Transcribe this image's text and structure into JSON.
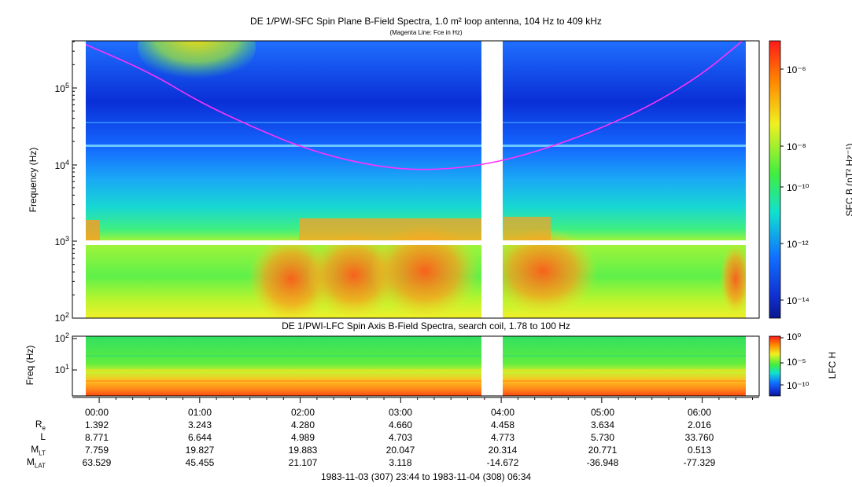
{
  "top_panel": {
    "title": "DE 1/PWI-SFC  Spin Plane B-Field Spectra, 1.0 m² loop antenna, 104 Hz to 409 kHz",
    "subtitle": "(Magenta Line: Fce in Hz)",
    "ylabel": "Frequency (Hz)",
    "colorbar_label": "SFC B (nT² Hz⁻¹)",
    "colorbar_ticks": [
      "10⁻⁶",
      "10⁻⁸",
      "10⁻¹⁰",
      "10⁻¹²",
      "10⁻¹⁴"
    ],
    "yticks": [
      {
        "base": "10",
        "exp": "5"
      },
      {
        "base": "10",
        "exp": "4"
      },
      {
        "base": "10",
        "exp": "3"
      },
      {
        "base": "10",
        "exp": "2"
      }
    ]
  },
  "bottom_panel": {
    "title": "DE 1/PWI-LFC  Spin Axis B-Field Spectra, search coil, 1.78 to 100 Hz",
    "ylabel": "Freq (Hz)",
    "colorbar_label": "LFC H",
    "colorbar_ticks": [
      "10⁰",
      "10⁻⁵",
      "10⁻¹⁰"
    ],
    "yticks": [
      {
        "base": "10",
        "exp": "2"
      },
      {
        "base": "10",
        "exp": "1"
      }
    ]
  },
  "ephemeris": {
    "labels": [
      {
        "main": "R",
        "sub": "e"
      },
      {
        "main": "L",
        "sub": ""
      },
      {
        "main": "M",
        "sub": "LT"
      },
      {
        "main": "M",
        "sub": "LAT"
      }
    ],
    "time_ticks": [
      "00:00",
      "01:00",
      "02:00",
      "03:00",
      "04:00",
      "05:00",
      "06:00"
    ],
    "re": [
      "1.392",
      "3.243",
      "4.280",
      "4.660",
      "4.458",
      "3.634",
      "2.016"
    ],
    "l": [
      "8.771",
      "6.644",
      "4.989",
      "4.703",
      "4.773",
      "5.730",
      "33.760"
    ],
    "mlt": [
      "7.759",
      "19.827",
      "19.883",
      "20.047",
      "20.314",
      "20.771",
      "0.513"
    ],
    "mlat": [
      "63.529",
      "45.455",
      "21.107",
      "3.118",
      "-14.672",
      "-36.948",
      "-77.329"
    ],
    "footer": "1983-11-03 (307) 23:44 to 1983-11-04 (308) 06:34"
  },
  "colors": {
    "fce_line": "#ff33ff",
    "data_gap": "#ffffff",
    "frame": "#000000"
  },
  "chart_data": [
    {
      "type": "heatmap",
      "title": "DE 1/PWI-SFC  Spin Plane B-Field Spectra, 1.0 m² loop antenna, 104 Hz to 409 kHz",
      "ylabel": "Frequency (Hz)",
      "yscale": "log",
      "ylim": [
        100,
        409000
      ],
      "xlim": [
        "23:44",
        "06:34"
      ],
      "zlabel": "SFC B (nT² Hz⁻¹)",
      "zscale": "log",
      "zlim": [
        1e-15,
        1e-05
      ],
      "data_gaps": [
        [
          "03:44",
          "03:57"
        ]
      ],
      "frequency_gap_hz": [
        1000,
        1100
      ],
      "fce_line": {
        "time_hours": [
          23.78,
          0.5,
          1.0,
          1.5,
          2.0,
          2.5,
          3.0,
          3.5,
          4.0,
          4.5,
          5.0,
          5.5,
          6.0,
          6.4
        ],
        "frequency_hz": [
          409000,
          160000,
          65000,
          32000,
          17000,
          11000,
          8600,
          8700,
          11000,
          17000,
          30000,
          60000,
          150000,
          409000
        ]
      }
    },
    {
      "type": "heatmap",
      "title": "DE 1/PWI-LFC  Spin Axis B-Field Spectra, search coil, 1.78 to 100 Hz",
      "ylabel": "Freq (Hz)",
      "yscale": "log",
      "ylim": [
        1.78,
        100
      ],
      "xlim": [
        "23:44",
        "06:34"
      ],
      "zlabel": "LFC H",
      "zscale": "log",
      "zlim": [
        1e-12,
        1
      ],
      "data_gaps": [
        [
          "03:44",
          "03:57"
        ]
      ]
    }
  ]
}
